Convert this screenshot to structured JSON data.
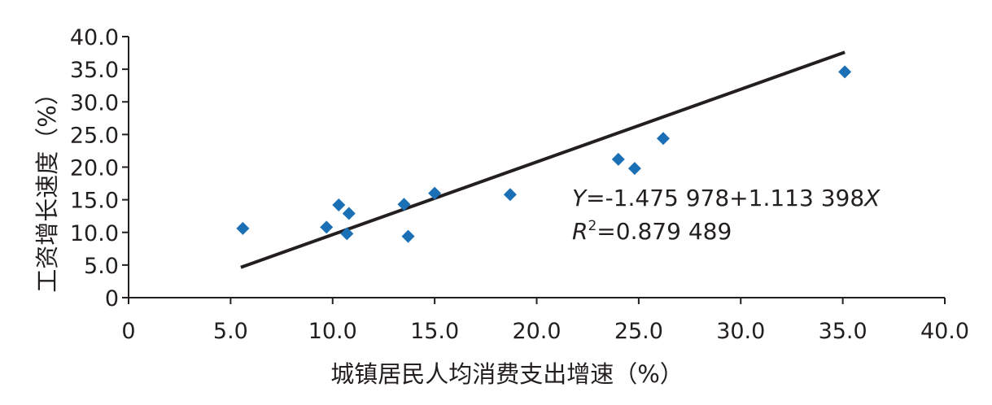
{
  "chart_data": {
    "type": "scatter",
    "xlabel": "城镇居民人均消费支出增速（%）",
    "ylabel": "工资增长速度（%）",
    "xlim": [
      0,
      40
    ],
    "ylim": [
      0,
      40
    ],
    "x_ticks": [
      "0",
      "5.0",
      "10.0",
      "15.0",
      "20.0",
      "25.0",
      "30.0",
      "35.0",
      "40.0"
    ],
    "y_ticks": [
      "0",
      "5.0",
      "10.0",
      "15.0",
      "20.0",
      "25.0",
      "30.0",
      "35.0",
      "40.0"
    ],
    "grid": false,
    "marker_color": "#1a6fb5",
    "line_color": "#231f20",
    "points": [
      {
        "x": 5.6,
        "y": 10.6
      },
      {
        "x": 9.7,
        "y": 10.8
      },
      {
        "x": 10.3,
        "y": 14.2
      },
      {
        "x": 10.7,
        "y": 9.8
      },
      {
        "x": 10.8,
        "y": 12.9
      },
      {
        "x": 13.5,
        "y": 14.3
      },
      {
        "x": 13.7,
        "y": 9.4
      },
      {
        "x": 15.0,
        "y": 16.0
      },
      {
        "x": 18.7,
        "y": 15.8
      },
      {
        "x": 24.0,
        "y": 21.2
      },
      {
        "x": 24.8,
        "y": 19.8
      },
      {
        "x": 26.2,
        "y": 24.4
      },
      {
        "x": 35.1,
        "y": 34.6
      }
    ],
    "trendline": {
      "intercept": -1.475978,
      "slope": 1.113398,
      "x_range": [
        5.5,
        35.1
      ]
    },
    "equation": {
      "y_var": "Y",
      "y_rest": "=-1.475 978+1.113 398",
      "x_var": "X",
      "r_var": "R",
      "r_sup": "2",
      "r_rest": "=0.879 489"
    }
  }
}
